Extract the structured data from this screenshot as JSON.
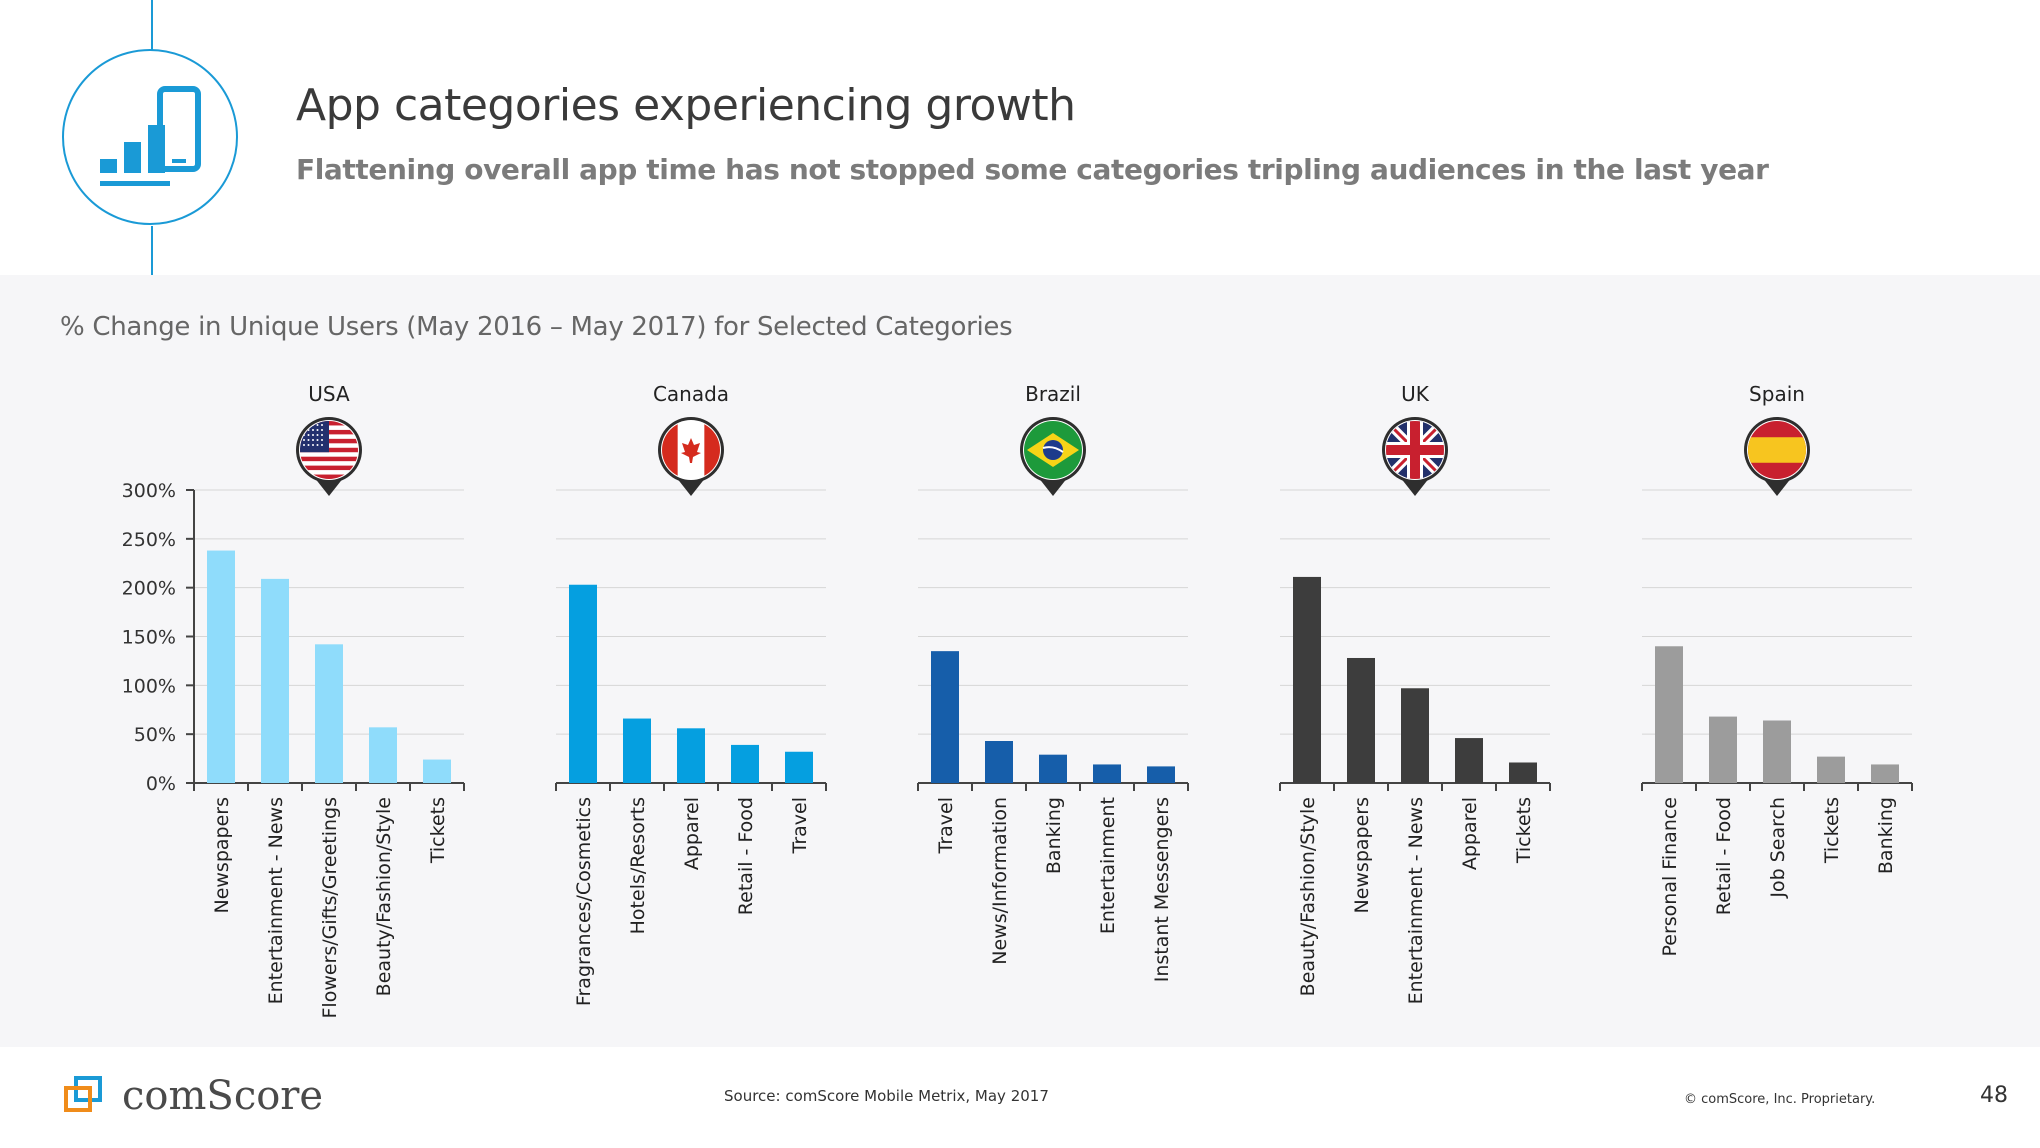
{
  "header": {
    "title": "App categories experiencing growth",
    "subtitle": "Flattening overall app time has not stopped some categories tripling audiences in the last year"
  },
  "chart_title": "% Change in Unique Users (May 2016 – May 2017) for Selected Categories",
  "footer": {
    "brand": "comScore",
    "source": "Source: comScore Mobile Metrix, May 2017",
    "copyright": "© comScore, Inc. Proprietary.",
    "page_number": "48"
  },
  "colors": {
    "accent": "#1a9ad6",
    "usa": "#8fdcfb",
    "canada": "#059fe0",
    "brazil": "#165eaa",
    "uk": "#3d3d3d",
    "spain": "#9c9c9c"
  },
  "chart_data": [
    {
      "type": "bar",
      "title": "USA",
      "flag_icon": "usa-flag-icon",
      "categories": [
        "Newspapers",
        "Entertainment - News",
        "Flowers/Gifts/Greetings",
        "Beauty/Fashion/Style",
        "Tickets"
      ],
      "values": [
        238,
        209,
        142,
        57,
        24
      ],
      "ylim": [
        0,
        300
      ],
      "yticks": [
        "0%",
        "50%",
        "100%",
        "150%",
        "200%",
        "250%",
        "300%"
      ],
      "color_key": "usa"
    },
    {
      "type": "bar",
      "title": "Canada",
      "flag_icon": "canada-flag-icon",
      "categories": [
        "Fragrances/Cosmetics",
        "Hotels/Resorts",
        "Apparel",
        "Retail - Food",
        "Travel"
      ],
      "values": [
        203,
        66,
        56,
        39,
        32
      ],
      "ylim": [
        0,
        300
      ],
      "color_key": "canada"
    },
    {
      "type": "bar",
      "title": "Brazil",
      "flag_icon": "brazil-flag-icon",
      "categories": [
        "Travel",
        "News/Information",
        "Banking",
        "Entertainment",
        "Instant Messengers"
      ],
      "values": [
        135,
        43,
        29,
        19,
        17
      ],
      "ylim": [
        0,
        300
      ],
      "color_key": "brazil"
    },
    {
      "type": "bar",
      "title": "UK",
      "flag_icon": "uk-flag-icon",
      "categories": [
        "Beauty/Fashion/Style",
        "Newspapers",
        "Entertainment - News",
        "Apparel",
        "Tickets"
      ],
      "values": [
        211,
        128,
        97,
        46,
        21
      ],
      "ylim": [
        0,
        300
      ],
      "color_key": "uk"
    },
    {
      "type": "bar",
      "title": "Spain",
      "flag_icon": "spain-flag-icon",
      "categories": [
        "Personal Finance",
        "Retail - Food",
        "Job Search",
        "Tickets",
        "Banking"
      ],
      "values": [
        140,
        68,
        64,
        27,
        19
      ],
      "ylim": [
        0,
        300
      ],
      "color_key": "spain"
    }
  ]
}
